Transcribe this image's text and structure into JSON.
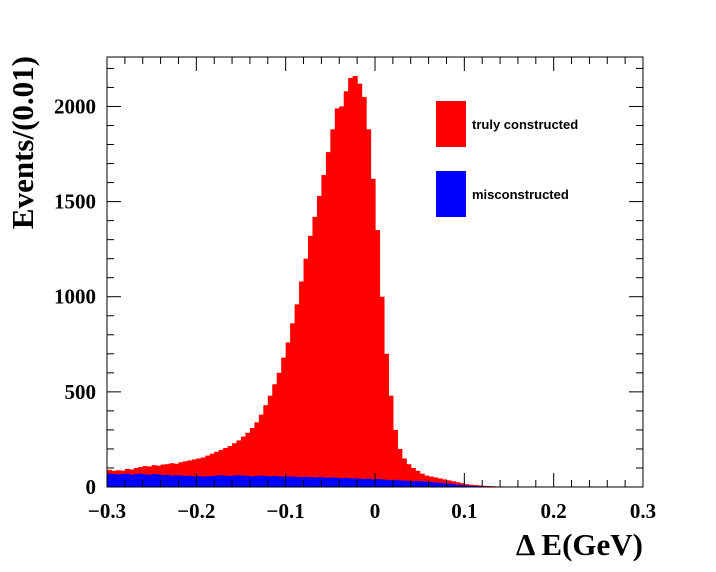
{
  "chart_data": {
    "type": "bar",
    "xlabel": "Δ E(GeV)",
    "ylabel": "Events/(0.01)",
    "xlim": [
      -0.3,
      0.3
    ],
    "ylim": [
      0,
      2260
    ],
    "x_ticks": [
      {
        "value": -0.3,
        "label": "−0.3"
      },
      {
        "value": -0.2,
        "label": "−0.2"
      },
      {
        "value": -0.1,
        "label": "−0.1"
      },
      {
        "value": 0,
        "label": "0"
      },
      {
        "value": 0.1,
        "label": "0.1"
      },
      {
        "value": 0.2,
        "label": "0.2"
      },
      {
        "value": 0.3,
        "label": "0.3"
      }
    ],
    "y_ticks": [
      {
        "value": 0,
        "label": "0"
      },
      {
        "value": 500,
        "label": "500"
      },
      {
        "value": 1000,
        "label": "1000"
      },
      {
        "value": 1500,
        "label": "1500"
      },
      {
        "value": 2000,
        "label": "2000"
      }
    ],
    "bin_start": -0.3,
    "bin_width": 0.005,
    "series": [
      {
        "name": "truly constructed",
        "color": "#ff0000",
        "values": [
          90,
          85,
          88,
          86,
          95,
          92,
          100,
          105,
          110,
          108,
          115,
          112,
          118,
          120,
          125,
          122,
          130,
          135,
          140,
          145,
          150,
          155,
          165,
          175,
          185,
          195,
          205,
          215,
          230,
          245,
          265,
          285,
          310,
          340,
          380,
          430,
          480,
          540,
          600,
          680,
          760,
          860,
          960,
          1080,
          1200,
          1320,
          1420,
          1530,
          1640,
          1760,
          1880,
          1990,
          2000,
          2080,
          2150,
          2160,
          2120,
          2050,
          1880,
          1620,
          1350,
          1000,
          700,
          480,
          300,
          200,
          150,
          120,
          100,
          85,
          70,
          60,
          55,
          50,
          45,
          40,
          35,
          30,
          25,
          20,
          15,
          12,
          10,
          8,
          6,
          5,
          4,
          3,
          3,
          2,
          2,
          2,
          1,
          1,
          1,
          1,
          1,
          1,
          1,
          1,
          1,
          1,
          1,
          1,
          1,
          1,
          1,
          1,
          1,
          1,
          1,
          1,
          1,
          1,
          1,
          1,
          1,
          1,
          1,
          1
        ]
      },
      {
        "name": "misconstructed",
        "color": "#0000ff",
        "values": [
          70,
          68,
          66,
          68,
          70,
          65,
          68,
          70,
          66,
          64,
          68,
          66,
          62,
          64,
          60,
          62,
          60,
          58,
          60,
          56,
          58,
          55,
          56,
          58,
          60,
          62,
          60,
          58,
          60,
          62,
          60,
          58,
          56,
          58,
          60,
          58,
          56,
          58,
          56,
          54,
          56,
          55,
          54,
          52,
          54,
          52,
          50,
          52,
          50,
          48,
          50,
          48,
          46,
          48,
          45,
          46,
          44,
          42,
          44,
          40,
          42,
          40,
          38,
          36,
          38,
          35,
          34,
          32,
          30,
          32,
          30,
          28,
          26,
          24,
          22,
          20,
          18,
          15,
          12,
          10,
          8,
          6,
          5,
          4,
          3,
          3,
          2,
          2,
          2,
          1,
          1,
          1,
          1,
          1,
          1,
          1,
          1,
          1,
          1,
          1,
          1,
          1,
          1,
          1,
          1,
          1,
          1,
          1,
          1,
          1,
          1,
          1,
          1,
          1,
          1,
          1,
          1,
          1,
          1,
          1
        ]
      }
    ],
    "legend": {
      "placement": "top-right",
      "entries": [
        {
          "label": "truly constructed",
          "color": "#ff0000"
        },
        {
          "label": "misconstructed",
          "color": "#0000ff"
        }
      ]
    },
    "grid": false
  }
}
